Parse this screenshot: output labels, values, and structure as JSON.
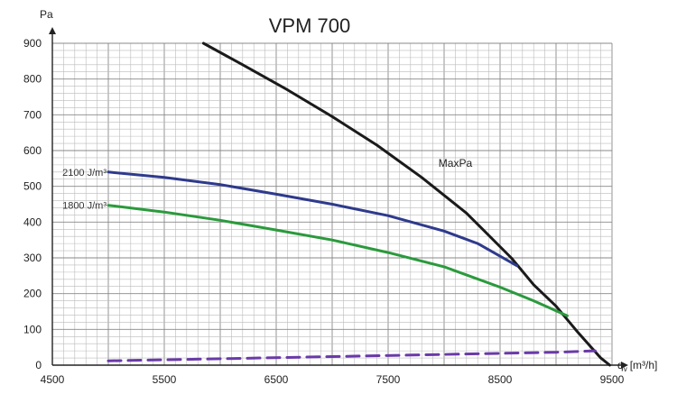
{
  "chart_data": {
    "type": "line",
    "title": "VPM 700",
    "ylabel": "Pa",
    "xlabel": "q",
    "xlabel_sub": "v",
    "xlabel_unit": "[m³/h]",
    "xlim": [
      4500,
      9500
    ],
    "ylim": [
      0,
      900
    ],
    "x_ticks": [
      4500,
      5500,
      6500,
      7500,
      8500,
      9500
    ],
    "y_ticks": [
      0,
      100,
      200,
      300,
      400,
      500,
      600,
      700,
      800,
      900
    ],
    "grid": true,
    "series": [
      {
        "name": "MaxPa",
        "color": "#1a1a1a",
        "style": "solid",
        "points": [
          [
            5850,
            900
          ],
          [
            6200,
            840
          ],
          [
            6600,
            770
          ],
          [
            7000,
            695
          ],
          [
            7400,
            615
          ],
          [
            7800,
            525
          ],
          [
            8200,
            425
          ],
          [
            8600,
            300
          ],
          [
            8800,
            225
          ],
          [
            9000,
            165
          ],
          [
            9200,
            90
          ],
          [
            9400,
            20
          ],
          [
            9480,
            0
          ]
        ]
      },
      {
        "name": "2100 J/m³",
        "color": "#2e3a8c",
        "style": "solid",
        "points": [
          [
            5000,
            540
          ],
          [
            5500,
            525
          ],
          [
            6000,
            505
          ],
          [
            6500,
            478
          ],
          [
            7000,
            450
          ],
          [
            7500,
            418
          ],
          [
            8000,
            375
          ],
          [
            8300,
            340
          ],
          [
            8650,
            278
          ]
        ]
      },
      {
        "name": "1800 J/m³",
        "color": "#2a9a3c",
        "style": "solid",
        "points": [
          [
            5000,
            447
          ],
          [
            5500,
            428
          ],
          [
            6000,
            405
          ],
          [
            6500,
            378
          ],
          [
            7000,
            350
          ],
          [
            7500,
            315
          ],
          [
            8000,
            275
          ],
          [
            8500,
            218
          ],
          [
            8800,
            180
          ],
          [
            9100,
            138
          ]
        ]
      },
      {
        "name": "",
        "color": "#6a3aa8",
        "style": "dashed",
        "points": [
          [
            5000,
            12
          ],
          [
            6000,
            18
          ],
          [
            7000,
            24
          ],
          [
            8000,
            30
          ],
          [
            9000,
            36
          ],
          [
            9350,
            40
          ]
        ]
      }
    ],
    "annotations": [
      {
        "text": "MaxPa",
        "x": 7950,
        "y": 555
      },
      {
        "text": "2100 J/m³",
        "x": 5000,
        "y": 540
      },
      {
        "text": "1800 J/m³",
        "x": 5000,
        "y": 447
      }
    ]
  }
}
